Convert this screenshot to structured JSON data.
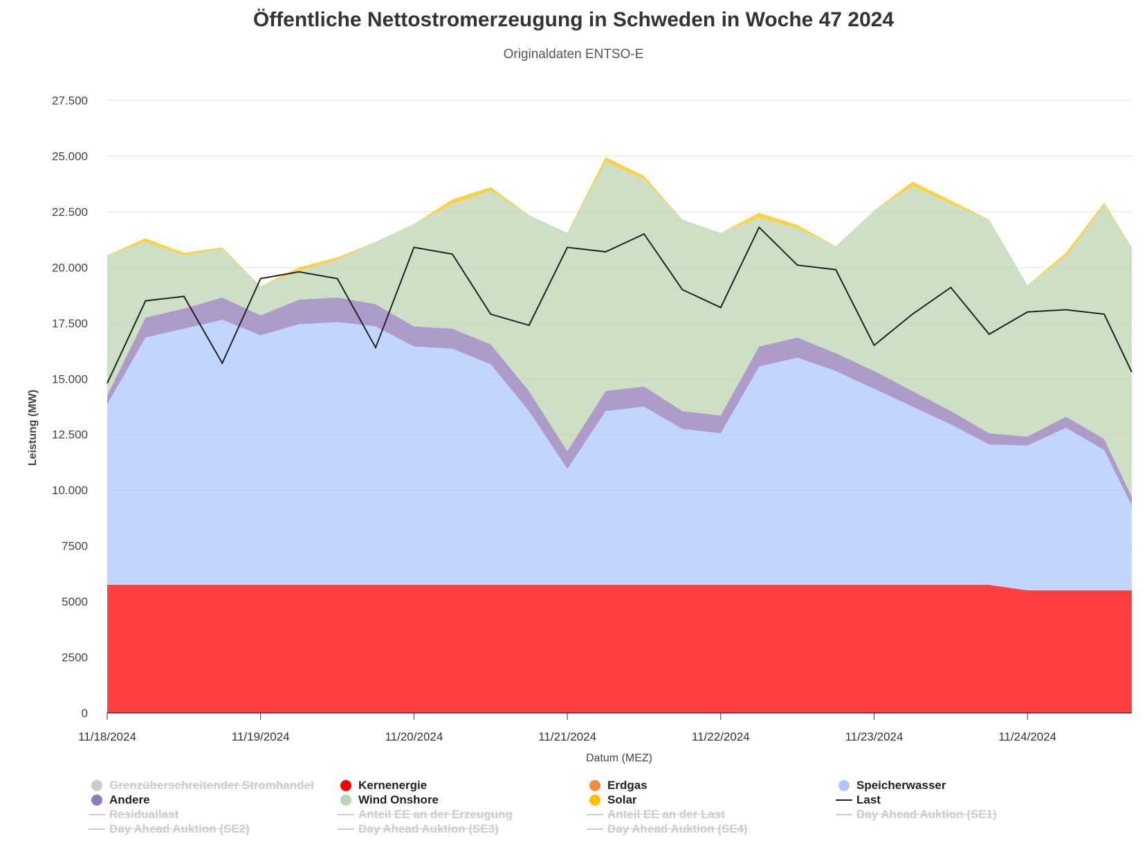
{
  "chart_data": {
    "type": "area",
    "title": "Öffentliche Nettostromerzeugung in Schweden in Woche 47 2024",
    "subtitle": "Originaldaten ENTSO-E",
    "xlabel": "Datum (MEZ)",
    "ylabel": "Leistung (MW)",
    "ylim": [
      0,
      27500
    ],
    "yticks": [
      0,
      2500,
      5000,
      7500,
      10000,
      12500,
      15000,
      17500,
      20000,
      22500,
      25000,
      27500
    ],
    "ytick_labels": [
      "0",
      "2500",
      "5000",
      "7500",
      "10.000",
      "12.500",
      "15.000",
      "17.500",
      "20.000",
      "22.500",
      "25.000",
      "27.500"
    ],
    "xlim": [
      0,
      6.68
    ],
    "xticks": [
      0,
      1,
      2,
      3,
      4,
      5,
      6
    ],
    "xtick_labels": [
      "11/18/2024",
      "11/19/2024",
      "11/20/2024",
      "11/21/2024",
      "11/22/2024",
      "11/23/2024",
      "11/24/2024"
    ],
    "grid": true,
    "legend_position": "bottom",
    "x": [
      0,
      0.25,
      0.5,
      0.75,
      1,
      1.25,
      1.5,
      1.75,
      2,
      2.25,
      2.5,
      2.75,
      3,
      3.25,
      3.5,
      3.75,
      4,
      4.25,
      4.5,
      4.75,
      5,
      5.25,
      5.5,
      5.75,
      6,
      6.25,
      6.5,
      6.68
    ],
    "stack_order": [
      "Kernenergie",
      "Speicherwasser",
      "Andere",
      "Wind Onshore",
      "Solar"
    ],
    "series": [
      {
        "name": "Kernenergie",
        "kind": "area",
        "color": "#ff0000",
        "values": [
          5750,
          5750,
          5750,
          5750,
          5750,
          5750,
          5750,
          5750,
          5750,
          5750,
          5750,
          5750,
          5750,
          5750,
          5750,
          5750,
          5750,
          5750,
          5750,
          5750,
          5750,
          5750,
          5750,
          5750,
          5500,
          5500,
          5500,
          5500
        ]
      },
      {
        "name": "Speicherwasser",
        "kind": "area",
        "color": "#aec7ff",
        "values": [
          8100,
          11100,
          11500,
          11900,
          11200,
          11700,
          11800,
          11600,
          10700,
          10600,
          9900,
          7800,
          5200,
          7800,
          8000,
          7000,
          6800,
          9800,
          10200,
          9600,
          8800,
          8000,
          7200,
          6300,
          6500,
          7300,
          6300,
          3800
        ]
      },
      {
        "name": "Andere",
        "kind": "area",
        "color": "#9179b8",
        "values": [
          400,
          900,
          900,
          1000,
          900,
          1100,
          1100,
          1000,
          900,
          900,
          900,
          900,
          800,
          900,
          900,
          800,
          800,
          900,
          900,
          800,
          800,
          700,
          600,
          500,
          400,
          500,
          500,
          400
        ]
      },
      {
        "name": "Wind Onshore",
        "kind": "area",
        "color": "#bcd6b3",
        "values": [
          6300,
          3400,
          2400,
          2200,
          1300,
          1300,
          1700,
          2800,
          4600,
          5600,
          6900,
          7900,
          9800,
          10300,
          9300,
          8600,
          8200,
          5800,
          4900,
          4800,
          7200,
          9200,
          9300,
          9600,
          6800,
          7200,
          10500,
          11200
        ]
      },
      {
        "name": "Solar",
        "kind": "area",
        "color": "#ffc000",
        "values": [
          0,
          150,
          100,
          50,
          0,
          150,
          100,
          0,
          0,
          200,
          150,
          0,
          0,
          200,
          150,
          0,
          0,
          200,
          150,
          0,
          0,
          200,
          150,
          0,
          0,
          150,
          100,
          0
        ]
      },
      {
        "name": "Last",
        "kind": "line",
        "color": "#222222",
        "values": [
          14800,
          18500,
          18700,
          15700,
          19500,
          19800,
          19500,
          16400,
          20900,
          20600,
          17900,
          17400,
          20900,
          20700,
          21500,
          19000,
          18200,
          21800,
          20100,
          19900,
          16500,
          17900,
          19100,
          17000,
          18000,
          18100,
          17900,
          15300
        ]
      }
    ],
    "legend": [
      {
        "name": "Grenzüberschreitender Stromhandel",
        "symbol": "dot",
        "color": "#cccccc",
        "hidden": true
      },
      {
        "name": "Kernenergie",
        "symbol": "dot",
        "color": "#ff0000",
        "hidden": false
      },
      {
        "name": "Erdgas",
        "symbol": "dot",
        "color": "#f08c3c",
        "hidden": false
      },
      {
        "name": "Speicherwasser",
        "symbol": "dot",
        "color": "#aec7ff",
        "hidden": false
      },
      {
        "name": "Andere",
        "symbol": "dot",
        "color": "#9179b8",
        "hidden": false
      },
      {
        "name": "Wind Onshore",
        "symbol": "dot",
        "color": "#bcd6b3",
        "hidden": false
      },
      {
        "name": "Solar",
        "symbol": "dot",
        "color": "#ffc000",
        "hidden": false
      },
      {
        "name": "Last",
        "symbol": "line",
        "color": "#222222",
        "hidden": false
      },
      {
        "name": "Residuallast",
        "symbol": "line",
        "color": "#cccccc",
        "hidden": true
      },
      {
        "name": "Anteil EE an der Erzeugung",
        "symbol": "line",
        "color": "#cccccc",
        "hidden": true
      },
      {
        "name": "Anteil EE an der Last",
        "symbol": "line",
        "color": "#cccccc",
        "hidden": true
      },
      {
        "name": "Day Ahead Auktion (SE1)",
        "symbol": "line",
        "color": "#cccccc",
        "hidden": true
      },
      {
        "name": "Day Ahead Auktion (SE2)",
        "symbol": "line",
        "color": "#cccccc",
        "hidden": true
      },
      {
        "name": "Day Ahead Auktion (SE3)",
        "symbol": "line",
        "color": "#cccccc",
        "hidden": true
      },
      {
        "name": "Day Ahead Auktion (SE4)",
        "symbol": "line",
        "color": "#cccccc",
        "hidden": true
      }
    ]
  }
}
